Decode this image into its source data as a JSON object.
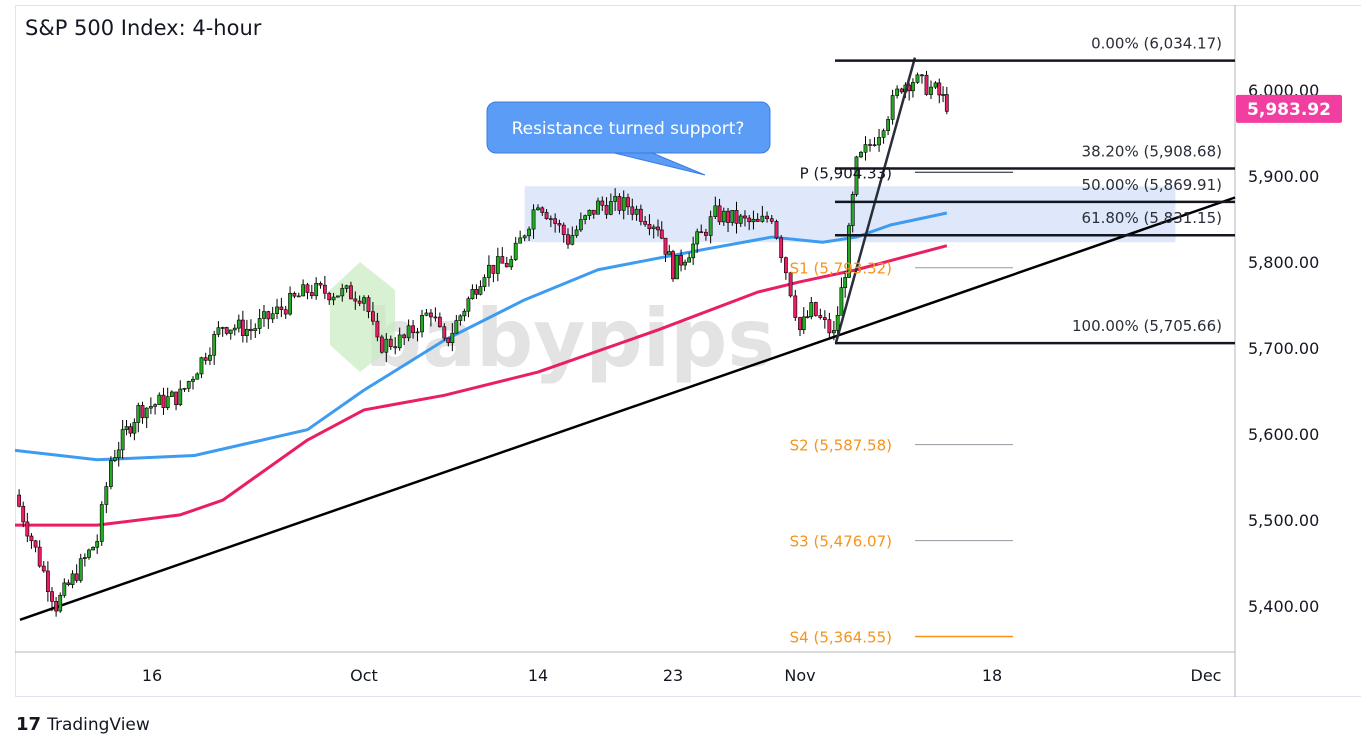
{
  "title": "S&P 500 Index: 4-hour",
  "footer": {
    "brand": "TradingView"
  },
  "watermark": "babypips",
  "chart_data": {
    "type": "candlestick",
    "title": "S&P 500 Index: 4-hour",
    "ylim": [
      5340,
      6090
    ],
    "y_ticks": [
      "5,400.00",
      "5,500.00",
      "5,600.00",
      "5,700.00",
      "5,800.00",
      "5,900.00",
      "6,000.00"
    ],
    "y_tick_values": [
      5400,
      5500,
      5600,
      5700,
      5800,
      5900,
      6000
    ],
    "x_ticks": [
      {
        "date": "2024-09-16",
        "label": "16"
      },
      {
        "date": "2024-10-01",
        "label": "Oct"
      },
      {
        "date": "2024-10-14",
        "label": "14"
      },
      {
        "date": "2024-10-23",
        "label": "23"
      },
      {
        "date": "2024-11-01",
        "label": "Nov"
      },
      {
        "date": "2024-11-18",
        "label": "18"
      },
      {
        "date": "2024-12-02",
        "label": "Dec"
      }
    ],
    "last_price": {
      "value": 5983.92,
      "label": "5,983.92",
      "color": "#f23ea0"
    },
    "price_path": [
      [
        "2024-09-06",
        5529
      ],
      [
        "2024-09-09",
        5401
      ],
      [
        "2024-09-12",
        5477
      ],
      [
        "2024-09-13",
        5570
      ],
      [
        "2024-09-15",
        5628
      ],
      [
        "2024-09-18",
        5645
      ],
      [
        "2024-09-21",
        5727
      ],
      [
        "2024-09-23",
        5721
      ],
      [
        "2024-09-27",
        5767
      ],
      [
        "2024-10-01",
        5762
      ],
      [
        "2024-10-02",
        5703
      ],
      [
        "2024-10-04",
        5710
      ],
      [
        "2024-10-06",
        5744
      ],
      [
        "2024-10-07",
        5703
      ],
      [
        "2024-10-10",
        5791
      ],
      [
        "2024-10-12",
        5800
      ],
      [
        "2024-10-14",
        5872
      ],
      [
        "2024-10-16",
        5826
      ],
      [
        "2024-10-18",
        5866
      ],
      [
        "2024-10-20",
        5866
      ],
      [
        "2024-10-22",
        5843
      ],
      [
        "2024-10-23",
        5791
      ],
      [
        "2024-10-25",
        5831
      ],
      [
        "2024-10-26",
        5855
      ],
      [
        "2024-10-29",
        5843
      ],
      [
        "2024-10-30",
        5855
      ],
      [
        "2024-10-31",
        5791
      ],
      [
        "2024-11-01",
        5721
      ],
      [
        "2024-11-02",
        5744
      ],
      [
        "2024-11-04",
        5715
      ],
      [
        "2024-11-05",
        5791
      ],
      [
        "2024-11-06",
        5913
      ],
      [
        "2024-11-08",
        5953
      ],
      [
        "2024-11-10",
        6006
      ],
      [
        "2024-11-11",
        6012
      ],
      [
        "2024-11-13",
        5999
      ],
      [
        "2024-11-14",
        5984
      ]
    ],
    "ma_series": [
      {
        "color": "#3d9cf0",
        "points": [
          [
            "2024-09-06",
            5581
          ],
          [
            "2024-09-12",
            5570
          ],
          [
            "2024-09-19",
            5575
          ],
          [
            "2024-09-27",
            5605
          ],
          [
            "2024-10-01",
            5651
          ],
          [
            "2024-10-07",
            5709
          ],
          [
            "2024-10-13",
            5756
          ],
          [
            "2024-10-18",
            5791
          ],
          [
            "2024-10-25",
            5814
          ],
          [
            "2024-10-30",
            5829
          ],
          [
            "2024-11-03",
            5823
          ],
          [
            "2024-11-06",
            5829
          ],
          [
            "2024-11-09",
            5843
          ],
          [
            "2024-11-14",
            5857
          ]
        ]
      },
      {
        "color": "#e91e63",
        "points": [
          [
            "2024-09-06",
            5494
          ],
          [
            "2024-09-12",
            5494
          ],
          [
            "2024-09-18",
            5506
          ],
          [
            "2024-09-21",
            5523
          ],
          [
            "2024-09-27",
            5593
          ],
          [
            "2024-10-01",
            5628
          ],
          [
            "2024-10-07",
            5645
          ],
          [
            "2024-10-14",
            5672
          ],
          [
            "2024-10-22",
            5721
          ],
          [
            "2024-10-29",
            5765
          ],
          [
            "2024-11-01",
            5777
          ],
          [
            "2024-11-06",
            5791
          ],
          [
            "2024-11-14",
            5819
          ]
        ]
      }
    ],
    "candle_colors": {
      "up": "#22ab22",
      "down": "#e91e63"
    },
    "trendline": [
      [
        "2024-09-06",
        5384
      ],
      [
        "2024-12-02",
        5875
      ]
    ],
    "fib_swing": [
      [
        "2024-11-04",
        5705.66
      ],
      [
        "2024-11-11",
        6034.17
      ]
    ],
    "fib_levels": [
      {
        "label": "0.00% (6,034.17)",
        "value": 6034.17
      },
      {
        "label": "38.20% (5,908.68)",
        "value": 5908.68
      },
      {
        "label": "50.00% (5,869.91)",
        "value": 5869.91
      },
      {
        "label": "61.80% (5,831.15)",
        "value": 5831.15
      },
      {
        "label": "100.00% (5,705.66)",
        "value": 5705.66
      }
    ],
    "pivots": [
      {
        "label": "P (5,904.33)",
        "value": 5904.33,
        "color": "#131722"
      },
      {
        "label": "S1 (5,793.32)",
        "value": 5793.32,
        "color": "#f7931a"
      },
      {
        "label": "S2 (5,587.58)",
        "value": 5587.58,
        "color": "#f7931a"
      },
      {
        "label": "S3 (5,476.07)",
        "value": 5476.07,
        "color": "#f7931a"
      },
      {
        "label": "S4 (5,364.55)",
        "value": 5364.55,
        "color": "#f7931a"
      }
    ],
    "zone": {
      "from": "2024-10-13",
      "to": "2024-11-30",
      "low": 5823,
      "high": 5888,
      "color": "#dbe5fb"
    },
    "annotation": {
      "text": "Resistance turned support?",
      "color": "#5b9cf6"
    }
  }
}
